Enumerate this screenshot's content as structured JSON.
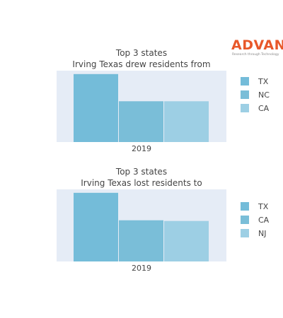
{
  "logo": {
    "name": "ADVAN",
    "tagline": "Research through Technology",
    "color": "#e8582a"
  },
  "chart_data": [
    {
      "type": "bar",
      "title": "Top 3 states",
      "subtitle": "Irving Texas drew residents from",
      "categories": [
        "2019"
      ],
      "series": [
        {
          "name": "TX",
          "values": [
            100
          ],
          "color": "#74bcd9"
        },
        {
          "name": "NC",
          "values": [
            60
          ],
          "color": "#7abed8"
        },
        {
          "name": "CA",
          "values": [
            60
          ],
          "color": "#9dcfe4"
        }
      ],
      "ylim": [
        0,
        105
      ],
      "xlabel": "",
      "ylabel": "",
      "legend_position": "right",
      "grid": false
    },
    {
      "type": "bar",
      "title": "Top 3 states",
      "subtitle": "Irving Texas lost residents to",
      "categories": [
        "2019"
      ],
      "series": [
        {
          "name": "TX",
          "values": [
            100
          ],
          "color": "#74bcd9"
        },
        {
          "name": "CA",
          "values": [
            60
          ],
          "color": "#7abed8"
        },
        {
          "name": "NJ",
          "values": [
            59
          ],
          "color": "#9dcfe4"
        }
      ],
      "ylim": [
        0,
        105
      ],
      "xlabel": "",
      "ylabel": "",
      "legend_position": "right",
      "grid": false
    }
  ]
}
